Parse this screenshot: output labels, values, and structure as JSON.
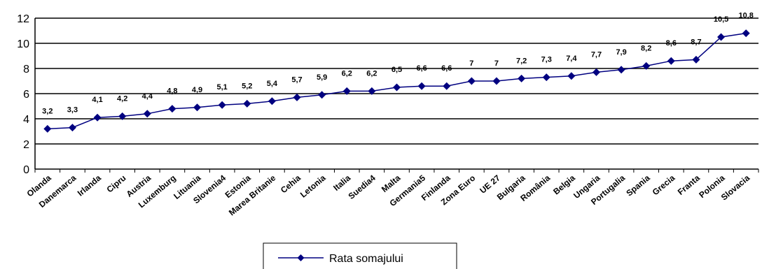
{
  "chart_data": {
    "type": "line",
    "categories": [
      "Olanda",
      "Danemarca",
      "Irlanda",
      "Cipru",
      "Austria",
      "Luxemburg",
      "Lituania",
      "Slovenia4",
      "Estonia",
      "Marea Britanie",
      "Cehia",
      "Letonia",
      "Italia",
      "Suedia4",
      "Malta",
      "Germania5",
      "Finlanda",
      "Zona Euro",
      "UE 27",
      "Bulgaria",
      "România",
      "Belgia",
      "Ungaria",
      "Portugalia",
      "Spania",
      "Grecia",
      "Franta",
      "Polonia",
      "Slovacia"
    ],
    "series": [
      {
        "name": "Rata somajului",
        "values": [
          3.2,
          3.3,
          4.1,
          4.2,
          4.4,
          4.8,
          4.9,
          5.1,
          5.2,
          5.4,
          5.7,
          5.9,
          6.2,
          6.2,
          6.5,
          6.6,
          6.6,
          7,
          7,
          7.2,
          7.3,
          7.4,
          7.7,
          7.9,
          8.2,
          8.6,
          8.7,
          10.5,
          10.8
        ],
        "data_labels": [
          "3,2",
          "3,3",
          "4,1",
          "4,2",
          "4,4",
          "4,8",
          "4,9",
          "5,1",
          "5,2",
          "5,4",
          "5,7",
          "5,9",
          "6,2",
          "6,2",
          "6,5",
          "6,6",
          "6,6",
          "7",
          "7",
          "7,2",
          "7,3",
          "7,4",
          "7,7",
          "7,9",
          "8,2",
          "8,6",
          "8,7",
          "10,5",
          "10,8"
        ]
      }
    ],
    "ylim": [
      0,
      12
    ],
    "yticks": [
      0,
      2,
      4,
      6,
      8,
      10,
      12
    ],
    "grid": true,
    "legend_position": "bottom",
    "colors": {
      "series": "#000080",
      "grid": "#000000",
      "axis": "#000000"
    }
  }
}
